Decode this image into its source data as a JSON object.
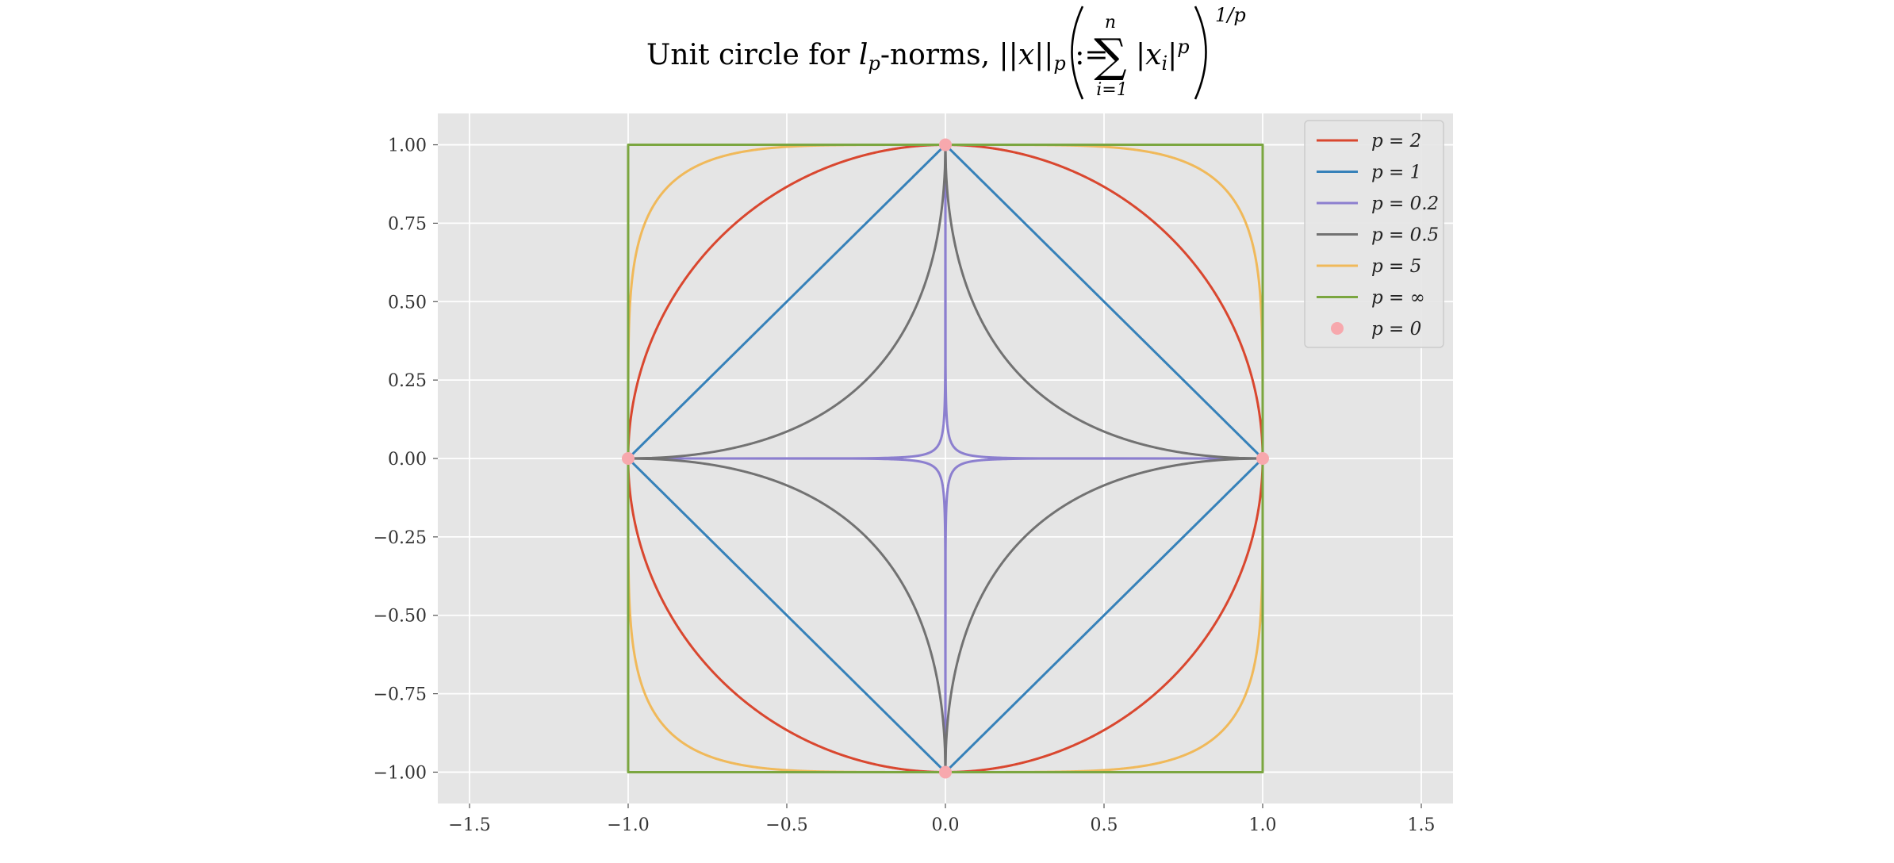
{
  "chart_data": {
    "type": "line",
    "title": {
      "prefix": "Unit circle for ",
      "l": "l",
      "l_sub": "p",
      "mid": "-norms, ||",
      "x": "x",
      "norm_close": "||",
      "norm_sub": "p",
      "assign": " := ",
      "sum": "∑",
      "sum_upper": "n",
      "sum_lower": "i=1",
      "abs_open": "|",
      "xi": "x",
      "xi_sub": "i",
      "abs_close": "|",
      "abs_pow": "p",
      "outer_pow": "1/p"
    },
    "xlim": [
      -1.6,
      1.6
    ],
    "ylim": [
      -1.1,
      1.1
    ],
    "x_ticks": [
      -1.5,
      -1.0,
      -0.5,
      0.0,
      0.5,
      1.0,
      1.5
    ],
    "x_tick_labels": [
      "−1.5",
      "−1.0",
      "−0.5",
      "0.0",
      "0.5",
      "1.0",
      "1.5"
    ],
    "y_ticks": [
      1.0,
      0.75,
      0.5,
      0.25,
      0.0,
      -0.25,
      -0.5,
      -0.75,
      -1.0
    ],
    "y_tick_labels": [
      "1.00",
      "0.75",
      "0.50",
      "0.25",
      "0.00",
      "−0.25",
      "−0.50",
      "−0.75",
      "−1.00"
    ],
    "grid": true,
    "background": "#e5e5e5",
    "legend_position": "top-right",
    "series": [
      {
        "name": "p = 2",
        "p": 2,
        "color": "#d9472f",
        "kind": "line"
      },
      {
        "name": "p = 1",
        "p": 1,
        "color": "#3681b9",
        "kind": "line"
      },
      {
        "name": "p = 0.2",
        "p": 0.2,
        "color": "#8c7fcf",
        "kind": "line"
      },
      {
        "name": "p = 0.5",
        "p": 0.5,
        "color": "#727272",
        "kind": "line"
      },
      {
        "name": "p = 5",
        "p": 5,
        "color": "#f0b95a",
        "kind": "line"
      },
      {
        "name": "p = ∞",
        "p": "inf",
        "color": "#7ba640",
        "kind": "line"
      },
      {
        "name": "p = 0",
        "p": 0,
        "color": "#f7a8ad",
        "kind": "points",
        "points": [
          [
            0,
            1
          ],
          [
            -1,
            0
          ],
          [
            1,
            0
          ],
          [
            0,
            -1
          ]
        ]
      }
    ]
  }
}
